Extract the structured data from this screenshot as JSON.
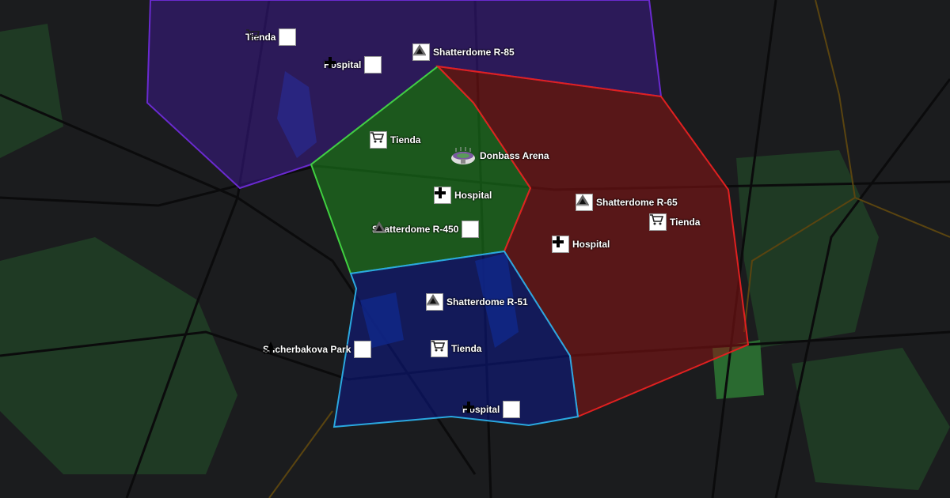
{
  "map": {
    "zones": [
      {
        "name": "purple-zone",
        "fill": "#3a1a8a",
        "stroke": "#6a2ad0"
      },
      {
        "name": "green-zone",
        "fill": "#1e8a1e",
        "stroke": "#40d040"
      },
      {
        "name": "red-zone",
        "fill": "#8a1414",
        "stroke": "#e02020"
      },
      {
        "name": "blue-zone",
        "fill": "#0c1a8a",
        "stroke": "#2aa8e0"
      }
    ],
    "markers": [
      {
        "label": "Tienda",
        "icon": "shopping-cart-icon"
      },
      {
        "label": "Hospital",
        "icon": "hospital-cross-icon"
      },
      {
        "label": "Shatterdome R-85",
        "icon": "tent-icon"
      },
      {
        "label": "Tienda",
        "icon": "shopping-cart-icon"
      },
      {
        "label": "Donbass Arena",
        "icon": "stadium-icon"
      },
      {
        "label": "Hospital",
        "icon": "hospital-cross-icon"
      },
      {
        "label": "Shatterdome R-450",
        "icon": "tent-icon"
      },
      {
        "label": "Shatterdome R-65",
        "icon": "tent-icon"
      },
      {
        "label": "Tienda",
        "icon": "shopping-cart-icon"
      },
      {
        "label": "Hospital",
        "icon": "hospital-cross-icon"
      },
      {
        "label": "Shatterdome R-51",
        "icon": "tent-icon"
      },
      {
        "label": "Shcherbakova Park",
        "icon": "park-tree-icon"
      },
      {
        "label": "Tienda",
        "icon": "shopping-cart-icon"
      },
      {
        "label": "Hospital",
        "icon": "hospital-cross-icon"
      }
    ]
  }
}
